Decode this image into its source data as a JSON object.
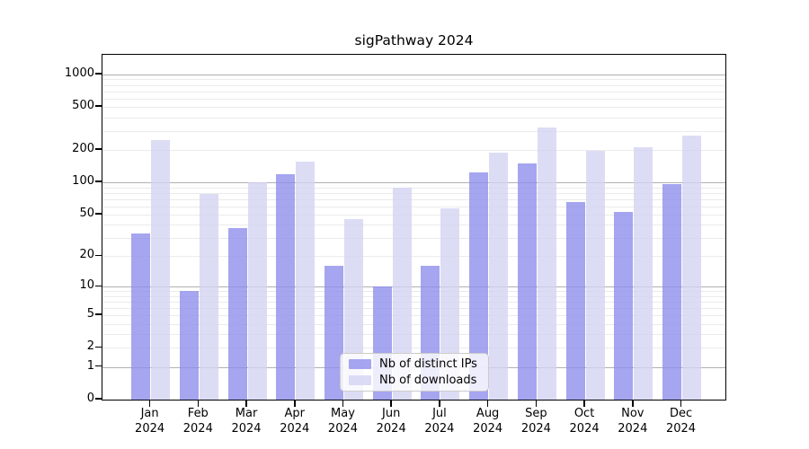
{
  "chart_data": {
    "type": "bar",
    "title": "sigPathway 2024",
    "categories": [
      "Jan",
      "Feb",
      "Mar",
      "Apr",
      "May",
      "Jun",
      "Jul",
      "Aug",
      "Sep",
      "Oct",
      "Nov",
      "Dec"
    ],
    "year_label": "2024",
    "series": [
      {
        "name": "Nb of distinct IPs",
        "color": "#8c8cec",
        "values": [
          33,
          9,
          37,
          120,
          16,
          10,
          16,
          123,
          150,
          65,
          53,
          97
        ]
      },
      {
        "name": "Nb of downloads",
        "color": "#d2d2f2",
        "values": [
          245,
          78,
          100,
          155,
          45,
          90,
          57,
          188,
          320,
          197,
          212,
          270
        ]
      }
    ],
    "xlabel": "",
    "ylabel": "",
    "yscale": "log1p",
    "yticks": [
      0,
      1,
      2,
      5,
      10,
      20,
      50,
      100,
      200,
      500,
      1000
    ],
    "ylim": [
      0,
      1500
    ],
    "grid": true,
    "grid_major_color": "#b0b0b0",
    "grid_minor_color": "#ebebeb",
    "legend_position": "lower center"
  }
}
